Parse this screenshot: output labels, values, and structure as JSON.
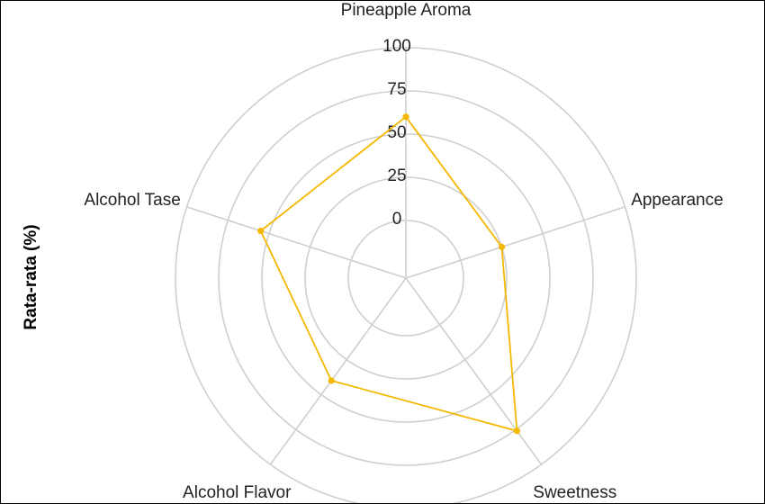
{
  "chart_data": {
    "type": "radar",
    "ylabel": "Rata-rata (%)",
    "categories": [
      "Pineapple Aroma",
      "Appearance",
      "Sweetness",
      "Alcohol Flavor",
      "Alcohol Tase"
    ],
    "rlim": [
      0,
      100
    ],
    "ticks": [
      "0",
      "25",
      "50",
      "75",
      "100"
    ],
    "series": [
      {
        "values": [
          60,
          25,
          76,
          40,
          55
        ],
        "color": "#f5b800"
      }
    ],
    "grid": true,
    "legend": "none"
  }
}
